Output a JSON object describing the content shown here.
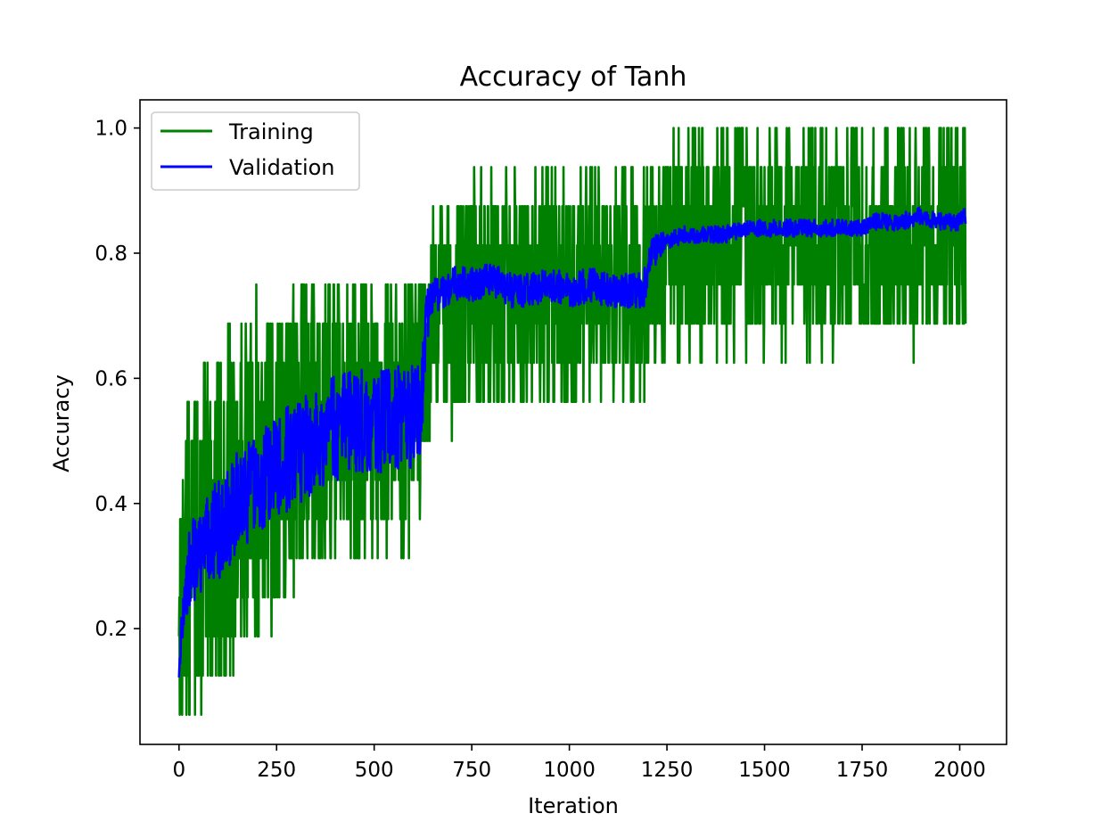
{
  "chart_data": {
    "type": "line",
    "title": "Accuracy of Tanh",
    "xlabel": "Iteration",
    "ylabel": "Accuracy",
    "xlim": [
      -100,
      2120
    ],
    "ylim": [
      0.015,
      1.045
    ],
    "xticks": [
      0,
      250,
      500,
      750,
      1000,
      1250,
      1500,
      1750,
      2000
    ],
    "yticks": [
      0.2,
      0.4,
      0.6,
      0.8,
      1.0
    ],
    "xtick_labels": [
      "0",
      "250",
      "500",
      "750",
      "1000",
      "1250",
      "1500",
      "1750",
      "2000"
    ],
    "ytick_labels": [
      "0.2",
      "0.4",
      "0.6",
      "0.8",
      "1.0"
    ],
    "grid": false,
    "legend_position": "upper-left",
    "series": [
      {
        "name": "Training",
        "color": "#008000",
        "x": [
          0,
          20,
          40,
          60,
          80,
          100,
          130,
          160,
          200,
          250,
          300,
          350,
          400,
          450,
          500,
          550,
          600,
          630,
          650,
          700,
          750,
          800,
          850,
          900,
          950,
          1000,
          1050,
          1100,
          1150,
          1200,
          1250,
          1300,
          1350,
          1400,
          1450,
          1500,
          1550,
          1600,
          1650,
          1700,
          1750,
          1800,
          1850,
          1900,
          1950,
          2000,
          2015
        ],
        "values": [
          0.25,
          0.3,
          0.32,
          0.34,
          0.36,
          0.38,
          0.4,
          0.42,
          0.45,
          0.47,
          0.5,
          0.51,
          0.52,
          0.53,
          0.54,
          0.55,
          0.56,
          0.62,
          0.7,
          0.72,
          0.73,
          0.73,
          0.74,
          0.74,
          0.74,
          0.74,
          0.75,
          0.75,
          0.75,
          0.76,
          0.8,
          0.81,
          0.81,
          0.82,
          0.82,
          0.82,
          0.82,
          0.82,
          0.82,
          0.83,
          0.83,
          0.83,
          0.83,
          0.83,
          0.84,
          0.84,
          0.84
        ],
        "noise_amplitude": [
          0.13,
          0.16,
          0.17,
          0.18,
          0.18,
          0.18,
          0.18,
          0.17,
          0.17,
          0.16,
          0.16,
          0.15,
          0.15,
          0.15,
          0.14,
          0.14,
          0.14,
          0.13,
          0.12,
          0.12,
          0.12,
          0.12,
          0.12,
          0.12,
          0.12,
          0.12,
          0.12,
          0.12,
          0.12,
          0.12,
          0.11,
          0.11,
          0.11,
          0.11,
          0.11,
          0.11,
          0.11,
          0.11,
          0.11,
          0.11,
          0.11,
          0.11,
          0.11,
          0.11,
          0.11,
          0.11,
          0.11
        ],
        "y_min": 0.0625,
        "y_max": 1.0,
        "quantization_step": 0.0625
      },
      {
        "name": "Validation",
        "color": "#0000ff",
        "x": [
          0,
          10,
          30,
          60,
          100,
          150,
          200,
          250,
          300,
          350,
          400,
          450,
          500,
          550,
          600,
          620,
          635,
          650,
          700,
          750,
          800,
          850,
          900,
          950,
          1000,
          1050,
          1100,
          1150,
          1190,
          1210,
          1250,
          1300,
          1350,
          1400,
          1450,
          1500,
          1550,
          1600,
          1650,
          1700,
          1750,
          1780,
          1800,
          1850,
          1900,
          1950,
          2000,
          2015
        ],
        "values": [
          0.1,
          0.25,
          0.3,
          0.33,
          0.36,
          0.4,
          0.43,
          0.46,
          0.48,
          0.5,
          0.52,
          0.53,
          0.53,
          0.54,
          0.54,
          0.55,
          0.7,
          0.73,
          0.75,
          0.75,
          0.76,
          0.74,
          0.74,
          0.75,
          0.74,
          0.75,
          0.74,
          0.74,
          0.74,
          0.8,
          0.82,
          0.83,
          0.83,
          0.83,
          0.84,
          0.84,
          0.84,
          0.84,
          0.84,
          0.84,
          0.84,
          0.85,
          0.85,
          0.85,
          0.86,
          0.85,
          0.85,
          0.86
        ],
        "noise_amplitude": [
          0.02,
          0.04,
          0.05,
          0.05,
          0.06,
          0.06,
          0.06,
          0.06,
          0.06,
          0.06,
          0.06,
          0.06,
          0.06,
          0.06,
          0.06,
          0.05,
          0.03,
          0.02,
          0.02,
          0.02,
          0.02,
          0.02,
          0.02,
          0.02,
          0.02,
          0.02,
          0.02,
          0.02,
          0.02,
          0.02,
          0.01,
          0.01,
          0.01,
          0.01,
          0.01,
          0.01,
          0.01,
          0.01,
          0.01,
          0.01,
          0.01,
          0.01,
          0.01,
          0.01,
          0.01,
          0.01,
          0.01,
          0.01
        ]
      }
    ]
  }
}
